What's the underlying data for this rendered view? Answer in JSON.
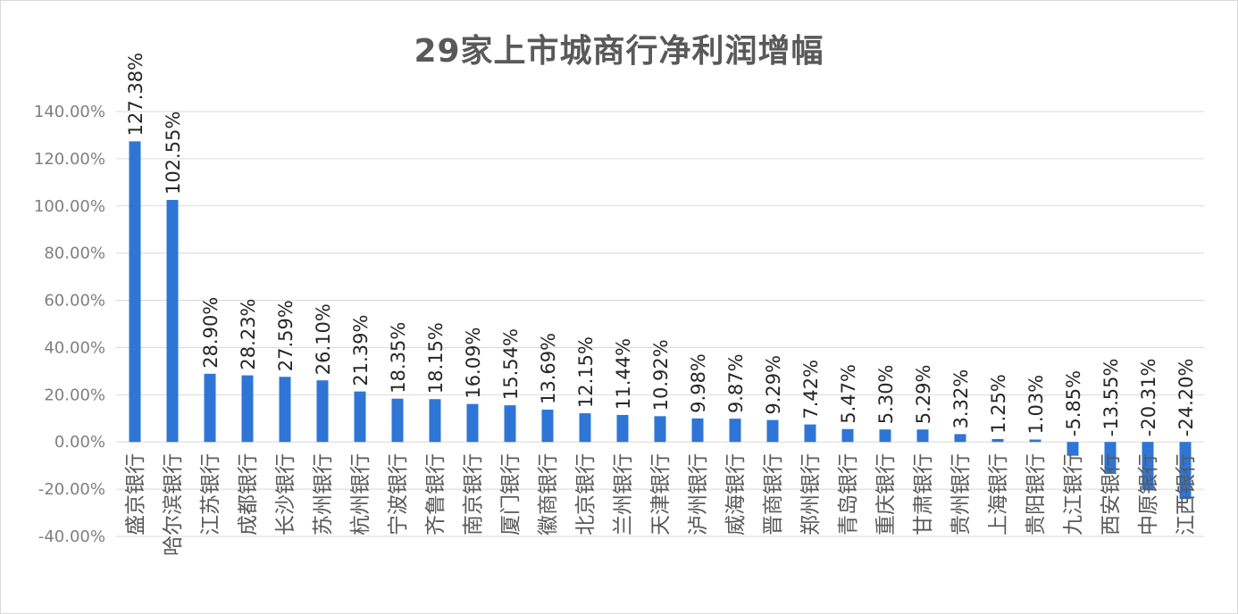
{
  "chart_data": {
    "type": "bar",
    "title": "29家上市城商行净利润增幅",
    "xlabel": "",
    "ylabel": "",
    "ylim": [
      -40,
      140
    ],
    "y_ticks": [
      "-40.00%",
      "-20.00%",
      "0.00%",
      "20.00%",
      "40.00%",
      "60.00%",
      "80.00%",
      "100.00%",
      "120.00%",
      "140.00%"
    ],
    "grid": true,
    "legend": "none",
    "bar_color": "#2e75d6",
    "grid_color": "#d9d9d9",
    "categories": [
      "盛京银行",
      "哈尔滨银行",
      "江苏银行",
      "成都银行",
      "长沙银行",
      "苏州银行",
      "杭州银行",
      "宁波银行",
      "齐鲁银行",
      "南京银行",
      "厦门银行",
      "徽商银行",
      "北京银行",
      "兰州银行",
      "天津银行",
      "泸州银行",
      "威海银行",
      "晋商银行",
      "郑州银行",
      "青岛银行",
      "重庆银行",
      "甘肃银行",
      "贵州银行",
      "上海银行",
      "贵阳银行",
      "九江银行",
      "西安银行",
      "中原银行",
      "江西银行"
    ],
    "values": [
      127.38,
      102.55,
      28.9,
      28.23,
      27.59,
      26.1,
      21.39,
      18.35,
      18.15,
      16.09,
      15.54,
      13.69,
      12.15,
      11.44,
      10.92,
      9.98,
      9.87,
      9.29,
      7.42,
      5.47,
      5.3,
      5.29,
      3.32,
      1.25,
      1.03,
      -5.85,
      -13.55,
      -20.31,
      -24.2
    ],
    "labels": [
      "127.38%",
      "102.55%",
      "28.90%",
      "28.23%",
      "27.59%",
      "26.10%",
      "21.39%",
      "18.35%",
      "18.15%",
      "16.09%",
      "15.54%",
      "13.69%",
      "12.15%",
      "11.44%",
      "10.92%",
      "9.98%",
      "9.87%",
      "9.29%",
      "7.42%",
      "5.47%",
      "5.30%",
      "5.29%",
      "3.32%",
      "1.25%",
      "1.03%",
      "-5.85%",
      "-13.55%",
      "-20.31%",
      "-24.20%"
    ]
  }
}
